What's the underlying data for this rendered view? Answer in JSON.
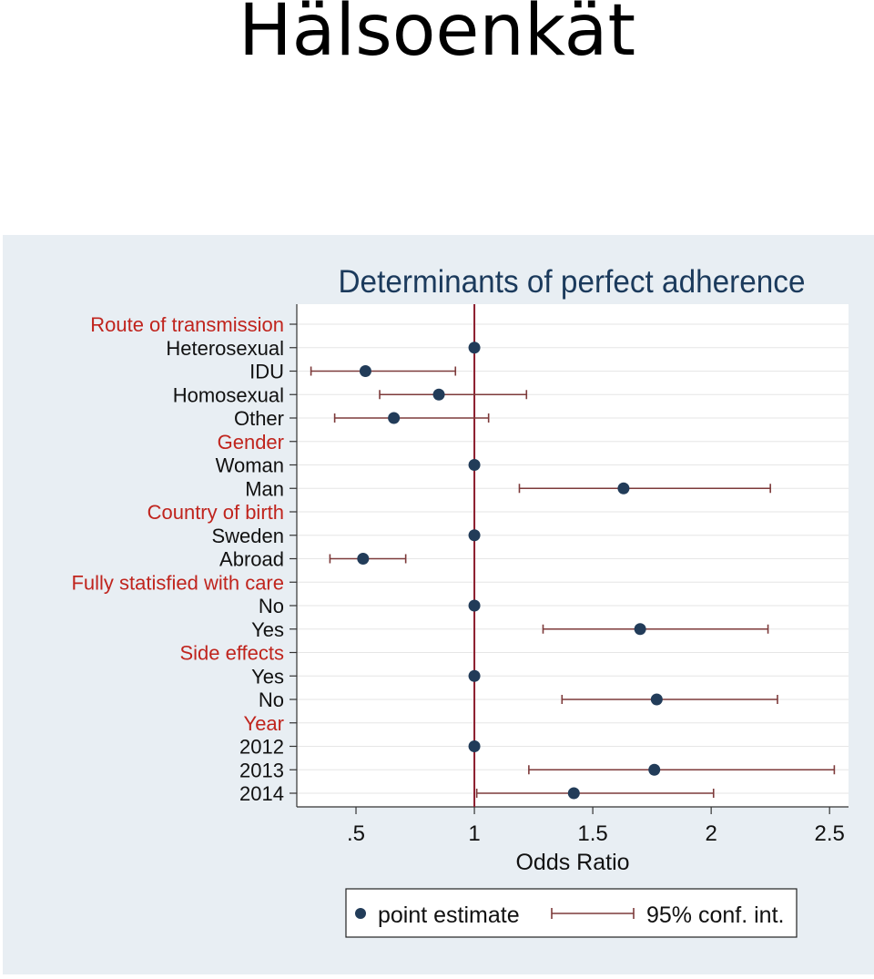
{
  "slide": {
    "title": "Hälsoenkät"
  },
  "colors": {
    "outer_background": "#e8eef3",
    "plot_background": "#ffffff",
    "group_label": "#c0241d",
    "item_label": "#111111",
    "title_text": "#1b3a5c",
    "marker": "#223c59",
    "ci_line": "#7d3a3a",
    "reference_line": "#8b1c2c",
    "gridline": "#e6e6e6"
  },
  "chart_data": {
    "type": "scatter",
    "subtype": "forest-plot",
    "title": "Determinants of perfect adherence",
    "xlabel": "Odds Ratio",
    "xlim": [
      0.25,
      2.58
    ],
    "xticks": [
      0.5,
      1,
      1.5,
      2,
      2.5
    ],
    "xtick_labels": [
      ".5",
      "1",
      "1.5",
      "2",
      "2.5"
    ],
    "reference_value": 1,
    "grid": true,
    "legend_position": "bottom",
    "legend": {
      "point": "point estimate",
      "interval": "95% conf. int."
    },
    "rows": [
      {
        "label": "Route of transmission",
        "group": true
      },
      {
        "label": "Heterosexual",
        "or": 1.0,
        "lo": null,
        "hi": null
      },
      {
        "label": "IDU",
        "or": 0.54,
        "lo": 0.31,
        "hi": 0.92
      },
      {
        "label": "Homosexual",
        "or": 0.85,
        "lo": 0.6,
        "hi": 1.22
      },
      {
        "label": "Other",
        "or": 0.66,
        "lo": 0.41,
        "hi": 1.06
      },
      {
        "label": "Gender",
        "group": true
      },
      {
        "label": "Woman",
        "or": 1.0,
        "lo": null,
        "hi": null
      },
      {
        "label": "Man",
        "or": 1.63,
        "lo": 1.19,
        "hi": 2.25
      },
      {
        "label": "Country of birth",
        "group": true
      },
      {
        "label": "Sweden",
        "or": 1.0,
        "lo": null,
        "hi": null
      },
      {
        "label": "Abroad",
        "or": 0.53,
        "lo": 0.39,
        "hi": 0.71
      },
      {
        "label": "Fully statisfied with care",
        "group": true
      },
      {
        "label": "No",
        "or": 1.0,
        "lo": null,
        "hi": null
      },
      {
        "label": "Yes",
        "or": 1.7,
        "lo": 1.29,
        "hi": 2.24
      },
      {
        "label": "Side effects",
        "group": true
      },
      {
        "label": "Yes",
        "or": 1.0,
        "lo": null,
        "hi": null
      },
      {
        "label": "No",
        "or": 1.77,
        "lo": 1.37,
        "hi": 2.28
      },
      {
        "label": "Year",
        "group": true
      },
      {
        "label": "2012",
        "or": 1.0,
        "lo": null,
        "hi": null
      },
      {
        "label": "2013",
        "or": 1.76,
        "lo": 1.23,
        "hi": 2.52
      },
      {
        "label": "2014",
        "or": 1.42,
        "lo": 1.01,
        "hi": 2.01
      }
    ]
  }
}
